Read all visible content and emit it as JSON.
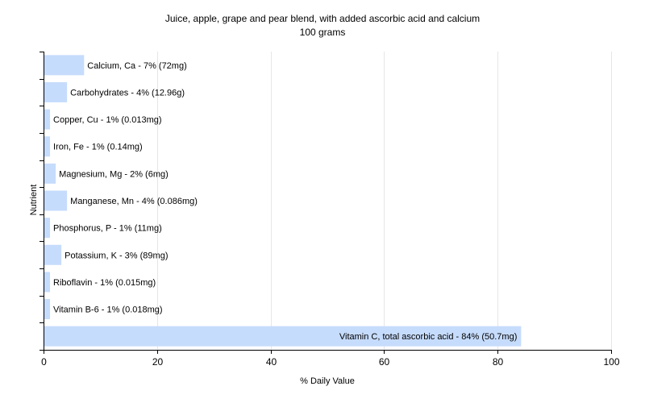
{
  "chart_data": {
    "type": "bar",
    "orientation": "horizontal",
    "title": "Juice, apple, grape and pear blend, with added ascorbic acid and calcium",
    "subtitle": "100 grams",
    "xlabel": "% Daily Value",
    "ylabel": "Nutrient",
    "xlim": [
      0,
      100
    ],
    "x_ticks": [
      "0",
      "20",
      "40",
      "60",
      "80",
      "100"
    ],
    "grid": "vertical",
    "bar_color": "#c6dcfc",
    "bars": [
      {
        "value": 7,
        "label": "Calcium, Ca - 7% (72mg)"
      },
      {
        "value": 4,
        "label": "Carbohydrates - 4% (12.96g)"
      },
      {
        "value": 1,
        "label": "Copper, Cu - 1% (0.013mg)"
      },
      {
        "value": 1,
        "label": "Iron, Fe - 1% (0.14mg)"
      },
      {
        "value": 2,
        "label": "Magnesium, Mg - 2% (6mg)"
      },
      {
        "value": 4,
        "label": "Manganese, Mn - 4% (0.086mg)"
      },
      {
        "value": 1,
        "label": "Phosphorus, P - 1% (11mg)"
      },
      {
        "value": 3,
        "label": "Potassium, K - 3% (89mg)"
      },
      {
        "value": 1,
        "label": "Riboflavin - 1% (0.015mg)"
      },
      {
        "value": 1,
        "label": "Vitamin B-6 - 1% (0.018mg)"
      },
      {
        "value": 84,
        "label": "Vitamin C, total ascorbic acid - 84% (50.7mg)"
      }
    ]
  }
}
